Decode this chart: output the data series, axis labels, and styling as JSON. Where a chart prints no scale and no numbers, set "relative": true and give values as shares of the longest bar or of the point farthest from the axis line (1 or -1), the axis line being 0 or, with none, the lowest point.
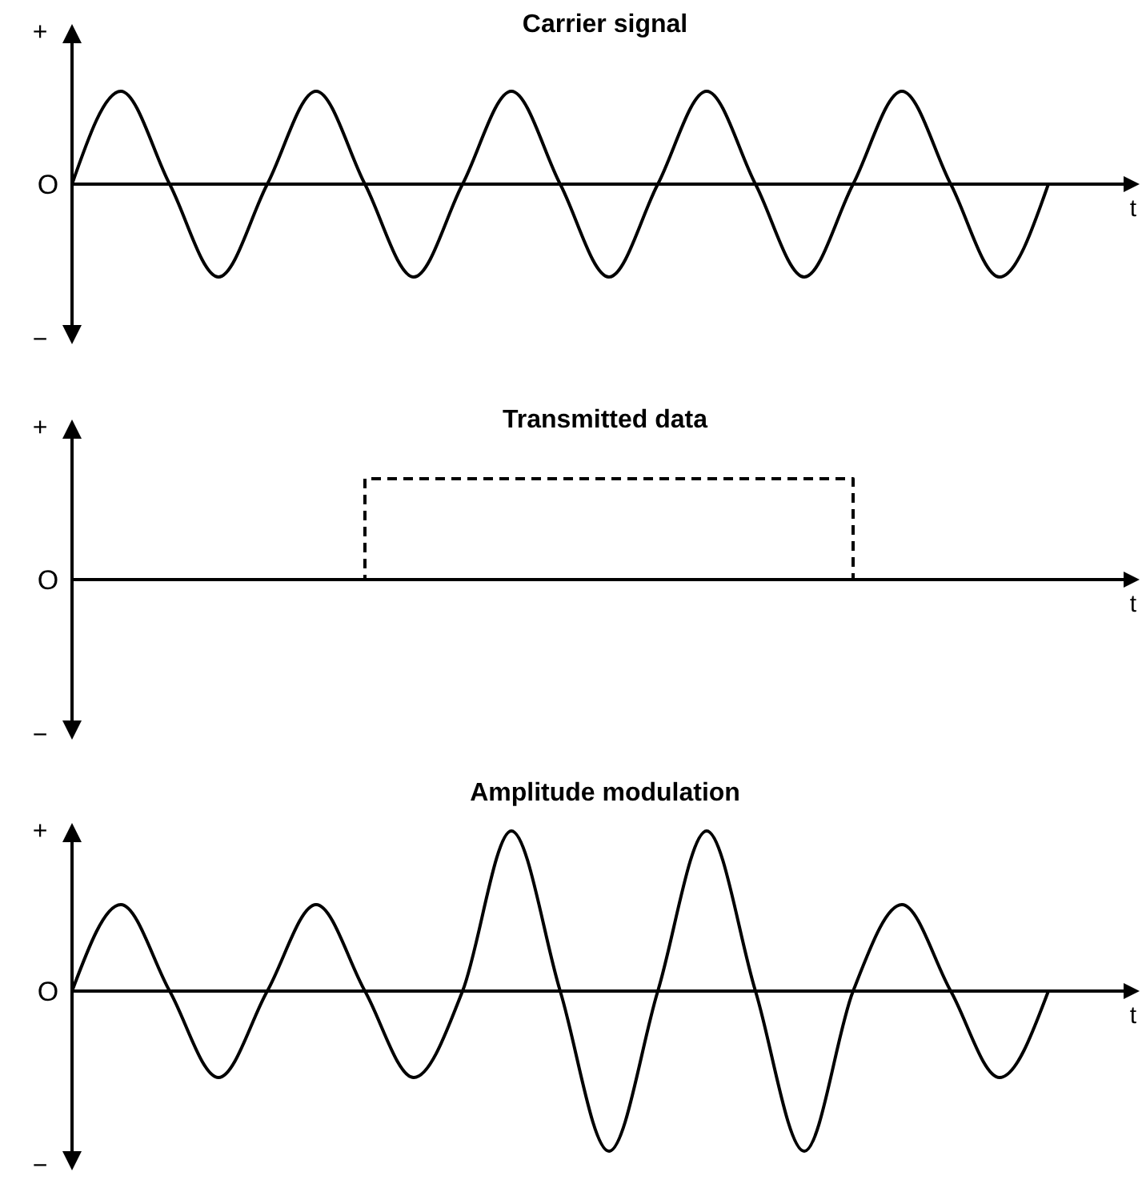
{
  "chart_data": [
    {
      "type": "line",
      "title": "Carrier signal",
      "xlabel": "t",
      "annotations": [
        "+",
        "−",
        "O"
      ],
      "relative": true,
      "line_style": "solid",
      "marker": "none",
      "categories": [
        null,
        null,
        null,
        null,
        null,
        null,
        null,
        null,
        null,
        null,
        null,
        null,
        null,
        null,
        null,
        null,
        null,
        null,
        null,
        null,
        null
      ],
      "series": [
        {
          "color": "#000000",
          "values": [
            0,
            1,
            0,
            -1,
            0,
            1,
            0,
            -1,
            0,
            1,
            0,
            -1,
            0,
            1,
            0,
            -1,
            0,
            1,
            0,
            -1,
            0
          ]
        }
      ]
    },
    {
      "type": "step",
      "title": "Transmitted data",
      "xlabel": "t",
      "annotations": [
        "+",
        "−",
        "O"
      ],
      "relative": true,
      "line_style": "dashed",
      "marker": "none",
      "categories": [
        null,
        null,
        null,
        null,
        null,
        null,
        null,
        null,
        null,
        null,
        null,
        null,
        null,
        null,
        null,
        null,
        null,
        null,
        null,
        null,
        null
      ],
      "series": [
        {
          "color": "#000000",
          "values": [
            0,
            0,
            0,
            0,
            0,
            0,
            1,
            1,
            1,
            1,
            1,
            1,
            1,
            1,
            1,
            1,
            0,
            0,
            0,
            0,
            0
          ]
        }
      ]
    },
    {
      "type": "line",
      "title": "Amplitude modulation",
      "xlabel": "t",
      "annotations": [
        "+",
        "−",
        "O"
      ],
      "relative": true,
      "line_style": "solid",
      "marker": "none",
      "categories": [
        null,
        null,
        null,
        null,
        null,
        null,
        null,
        null,
        null,
        null,
        null,
        null,
        null,
        null,
        null,
        null,
        null,
        null,
        null,
        null,
        null
      ],
      "series": [
        {
          "color": "#000000",
          "values": [
            0,
            0.54,
            0,
            -0.54,
            0,
            0.54,
            0,
            -0.54,
            0,
            1,
            0,
            -1,
            0,
            1,
            0,
            -1,
            0,
            0.54,
            0,
            -0.54,
            0
          ]
        }
      ]
    }
  ]
}
